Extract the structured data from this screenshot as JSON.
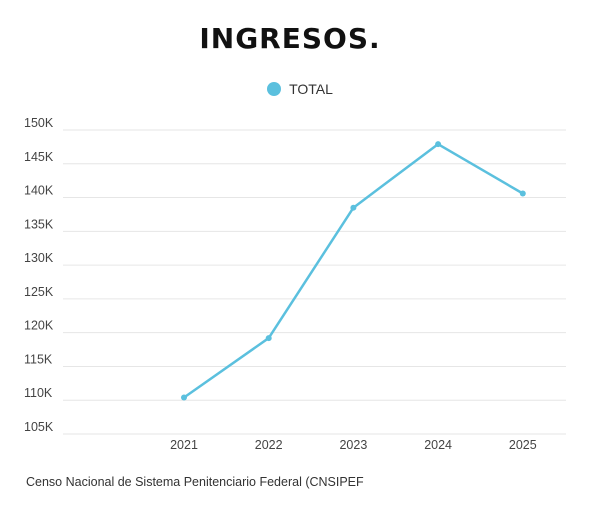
{
  "chart_data": {
    "type": "line",
    "title": "INGRESOS.",
    "x": [
      "2021",
      "2022",
      "2023",
      "2024",
      "2025"
    ],
    "series": [
      {
        "name": "TOTAL",
        "values": [
          110400,
          119200,
          138500,
          147900,
          140600
        ],
        "color": "#5bc0de"
      }
    ],
    "ylim": [
      105000,
      150000
    ],
    "yticks": [
      {
        "value": 105000,
        "label": "105K"
      },
      {
        "value": 110000,
        "label": "110K"
      },
      {
        "value": 115000,
        "label": "115K"
      },
      {
        "value": 120000,
        "label": "120K"
      },
      {
        "value": 125000,
        "label": "125K"
      },
      {
        "value": 130000,
        "label": "130K"
      },
      {
        "value": 135000,
        "label": "135K"
      },
      {
        "value": 140000,
        "label": "140K"
      },
      {
        "value": 145000,
        "label": "145K"
      },
      {
        "value": 150000,
        "label": "150K"
      }
    ],
    "grid": true,
    "legend_position": "top-center"
  },
  "source": "Censo Nacional de Sistema Penitenciario Federal (CNSIPEF"
}
